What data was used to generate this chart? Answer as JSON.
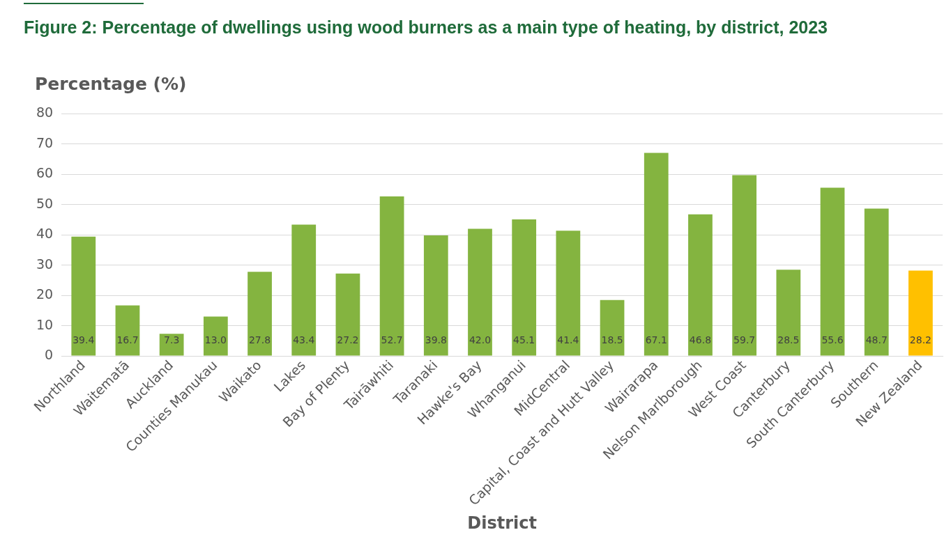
{
  "chart_data": {
    "type": "bar",
    "title": "Figure 2: Percentage of dwellings using wood burners as a main type of heating, by district, 2023",
    "xlabel": "District",
    "ylabel": "Percentage (%)",
    "categories": [
      "Northland",
      "Waitematā",
      "Auckland",
      "Counties Manukau",
      "Waikato",
      "Lakes",
      "Bay of Plenty",
      "Tairāwhiti",
      "Taranaki",
      "Hawke's Bay",
      "Whanganui",
      "MidCentral",
      "Capital, Coast and Hutt Valley",
      "Wairarapa",
      "Nelson Marlborough",
      "West Coast",
      "Canterbury",
      "South Canterbury",
      "Southern",
      "New Zealand"
    ],
    "values": [
      39.4,
      16.7,
      7.3,
      13.0,
      27.8,
      43.4,
      27.2,
      52.7,
      39.8,
      42.0,
      45.1,
      41.4,
      18.5,
      67.1,
      46.8,
      59.7,
      28.5,
      55.6,
      48.7,
      28.2
    ],
    "value_labels": [
      "39.4",
      "16.7",
      "7.3",
      "13.0",
      "27.8",
      "43.4",
      "27.2",
      "52.7",
      "39.8",
      "42.0",
      "45.1",
      "41.4",
      "18.5",
      "67.1",
      "46.8",
      "59.7",
      "28.5",
      "55.6",
      "48.7",
      "28.2"
    ],
    "colors": [
      "#84b440",
      "#84b440",
      "#84b440",
      "#84b440",
      "#84b440",
      "#84b440",
      "#84b440",
      "#84b440",
      "#84b440",
      "#84b440",
      "#84b440",
      "#84b440",
      "#84b440",
      "#84b440",
      "#84b440",
      "#84b440",
      "#84b440",
      "#84b440",
      "#84b440",
      "#ffc000"
    ],
    "ylim": [
      0,
      80
    ],
    "yticks": [
      0,
      10,
      20,
      30,
      40,
      50,
      60,
      70,
      80
    ],
    "grid": "y",
    "legend": false
  }
}
